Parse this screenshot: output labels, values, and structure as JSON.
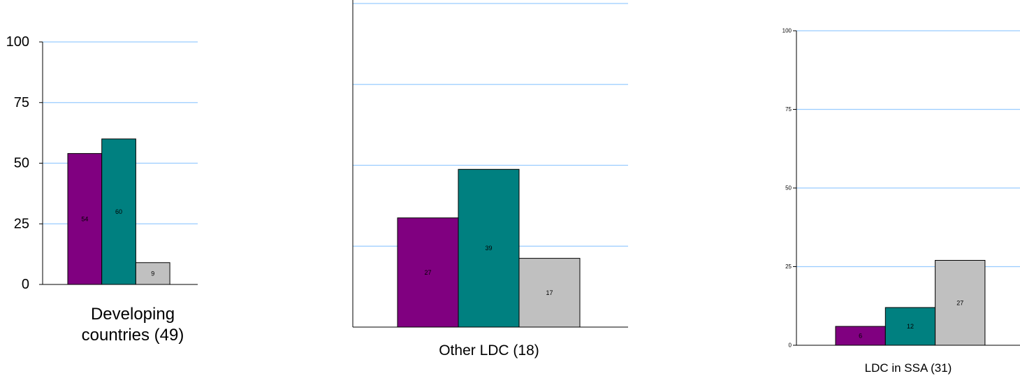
{
  "chart_data": [
    {
      "type": "bar",
      "categories": [
        "Developing countries (49)"
      ],
      "category_label_lines": [
        "Developing",
        "countries (49)"
      ],
      "series_values": [
        54,
        60,
        9
      ],
      "data_labels": [
        "54",
        "60",
        "9"
      ],
      "series_colors": [
        "#800080",
        "#008080",
        "#c0c0c0"
      ],
      "ylim": [
        0,
        100
      ],
      "yticks": [
        "0",
        "25",
        "50",
        "75",
        "100"
      ],
      "grid": true,
      "grid_color": "#99ccff"
    },
    {
      "type": "bar",
      "categories": [
        "Other LDC  (18)"
      ],
      "series_values": [
        27,
        39,
        17
      ],
      "data_labels": [
        "27",
        "39",
        "17"
      ],
      "series_colors": [
        "#800080",
        "#008080",
        "#c0c0c0"
      ],
      "ylim": [
        0,
        80
      ],
      "grid": true,
      "grid_color": "#99ccff"
    },
    {
      "type": "bar",
      "categories": [
        "LDC in SSA (31)"
      ],
      "series_values": [
        6,
        12,
        27
      ],
      "data_labels": [
        "6",
        "12",
        "27"
      ],
      "series_colors": [
        "#800080",
        "#008080",
        "#c0c0c0"
      ],
      "ylim": [
        0,
        100
      ],
      "yticks": [
        "0",
        "25",
        "50",
        "75",
        "100"
      ],
      "grid": true,
      "grid_color": "#99ccff"
    }
  ]
}
